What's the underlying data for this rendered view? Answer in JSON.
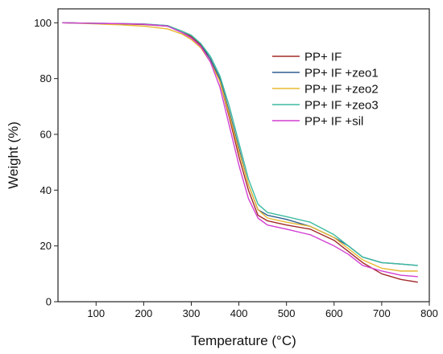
{
  "chart_data": {
    "type": "line",
    "xlabel": "Temperature (°C)",
    "ylabel": "Weight (%)",
    "xlim": [
      20,
      800
    ],
    "ylim": [
      0,
      105
    ],
    "x_ticks": [
      100,
      200,
      300,
      400,
      500,
      600,
      700,
      800
    ],
    "y_ticks": [
      0,
      20,
      40,
      60,
      80,
      100
    ],
    "grid": false,
    "legend_position": "top-right",
    "series": [
      {
        "name": "PP+ IF",
        "color": "#a32a2a",
        "points": [
          [
            30,
            100
          ],
          [
            100,
            99.8
          ],
          [
            150,
            99.6
          ],
          [
            200,
            99.4
          ],
          [
            250,
            98.8
          ],
          [
            280,
            97
          ],
          [
            300,
            95
          ],
          [
            320,
            92
          ],
          [
            340,
            87
          ],
          [
            360,
            79
          ],
          [
            380,
            66
          ],
          [
            400,
            52
          ],
          [
            420,
            40
          ],
          [
            440,
            31
          ],
          [
            460,
            29
          ],
          [
            500,
            27.5
          ],
          [
            550,
            26
          ],
          [
            600,
            22
          ],
          [
            630,
            18
          ],
          [
            660,
            14
          ],
          [
            700,
            10
          ],
          [
            740,
            8
          ],
          [
            775,
            7
          ]
        ]
      },
      {
        "name": "PP+ IF +zeo1",
        "color": "#2f5f8f",
        "points": [
          [
            30,
            100
          ],
          [
            100,
            99.8
          ],
          [
            150,
            99.7
          ],
          [
            200,
            99.5
          ],
          [
            250,
            99
          ],
          [
            280,
            97
          ],
          [
            300,
            95.5
          ],
          [
            320,
            92.5
          ],
          [
            340,
            87
          ],
          [
            360,
            80
          ],
          [
            380,
            68
          ],
          [
            400,
            55
          ],
          [
            420,
            42
          ],
          [
            440,
            33
          ],
          [
            460,
            31
          ],
          [
            500,
            29.5
          ],
          [
            550,
            27
          ],
          [
            600,
            23
          ],
          [
            630,
            20
          ],
          [
            660,
            16
          ],
          [
            700,
            14
          ],
          [
            740,
            13.5
          ],
          [
            775,
            13
          ]
        ]
      },
      {
        "name": "PP+ IF +zeo2",
        "color": "#e8b830",
        "points": [
          [
            30,
            100
          ],
          [
            100,
            99.6
          ],
          [
            150,
            99.3
          ],
          [
            200,
            98.8
          ],
          [
            250,
            97.8
          ],
          [
            280,
            96
          ],
          [
            300,
            94
          ],
          [
            320,
            91
          ],
          [
            340,
            86
          ],
          [
            360,
            79
          ],
          [
            380,
            67
          ],
          [
            400,
            54
          ],
          [
            420,
            42
          ],
          [
            440,
            33
          ],
          [
            460,
            30
          ],
          [
            500,
            28.5
          ],
          [
            550,
            27
          ],
          [
            600,
            23
          ],
          [
            630,
            19
          ],
          [
            660,
            15
          ],
          [
            700,
            12
          ],
          [
            740,
            11
          ],
          [
            775,
            11
          ]
        ]
      },
      {
        "name": "PP+ IF +zeo3",
        "color": "#3dbaa0",
        "points": [
          [
            30,
            100
          ],
          [
            100,
            99.8
          ],
          [
            150,
            99.7
          ],
          [
            200,
            99.6
          ],
          [
            250,
            99
          ],
          [
            280,
            97
          ],
          [
            300,
            95.5
          ],
          [
            320,
            92.5
          ],
          [
            340,
            88
          ],
          [
            360,
            81
          ],
          [
            380,
            70
          ],
          [
            400,
            57
          ],
          [
            420,
            44
          ],
          [
            440,
            35
          ],
          [
            460,
            32
          ],
          [
            500,
            30.5
          ],
          [
            550,
            28.5
          ],
          [
            600,
            24
          ],
          [
            630,
            20
          ],
          [
            660,
            16
          ],
          [
            700,
            14
          ],
          [
            740,
            13.5
          ],
          [
            775,
            13
          ]
        ]
      },
      {
        "name": "PP+ IF +sil",
        "color": "#d23fd2",
        "points": [
          [
            30,
            100
          ],
          [
            100,
            99.8
          ],
          [
            150,
            99.7
          ],
          [
            200,
            99.5
          ],
          [
            250,
            98.8
          ],
          [
            280,
            96.5
          ],
          [
            300,
            94.5
          ],
          [
            320,
            91.5
          ],
          [
            340,
            86
          ],
          [
            360,
            77
          ],
          [
            380,
            63
          ],
          [
            400,
            49
          ],
          [
            420,
            37
          ],
          [
            440,
            30
          ],
          [
            460,
            27.5
          ],
          [
            500,
            26
          ],
          [
            550,
            24
          ],
          [
            600,
            20
          ],
          [
            630,
            17
          ],
          [
            660,
            13
          ],
          [
            700,
            11
          ],
          [
            740,
            9.5
          ],
          [
            775,
            9
          ]
        ]
      }
    ]
  }
}
